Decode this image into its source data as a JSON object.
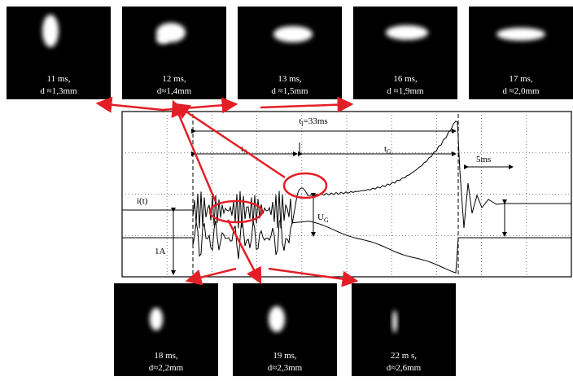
{
  "photos_top": [
    {
      "time": "11 ms,",
      "diameter": "d ≈1,3mm"
    },
    {
      "time": "12 ms,",
      "diameter": "d≈1,4mm"
    },
    {
      "time": "13 ms,",
      "diameter": "d ≈1,5mm"
    },
    {
      "time": "16 ms,",
      "diameter": "d ≈1,9mm"
    },
    {
      "time": "17 ms,",
      "diameter": "d ≈2,0mm"
    }
  ],
  "photos_bottom": [
    {
      "time": "18 ms,",
      "diameter": "d≈2,2mm"
    },
    {
      "time": "19 ms,",
      "diameter": "d≈2,3mm"
    },
    {
      "time": "22 m  s,",
      "diameter": "d≈2,6mm"
    }
  ],
  "scope": {
    "total": {
      "symbol": "t",
      "sub": "l",
      "rest": "=33ms"
    },
    "phase_a": {
      "symbol": "t",
      "sub": "A"
    },
    "phase_g": {
      "symbol": "t",
      "sub": "G"
    },
    "division": "5ms",
    "current": "i(t)",
    "voltage": {
      "symbol": "U",
      "sub": "G"
    },
    "scale": "1A"
  }
}
